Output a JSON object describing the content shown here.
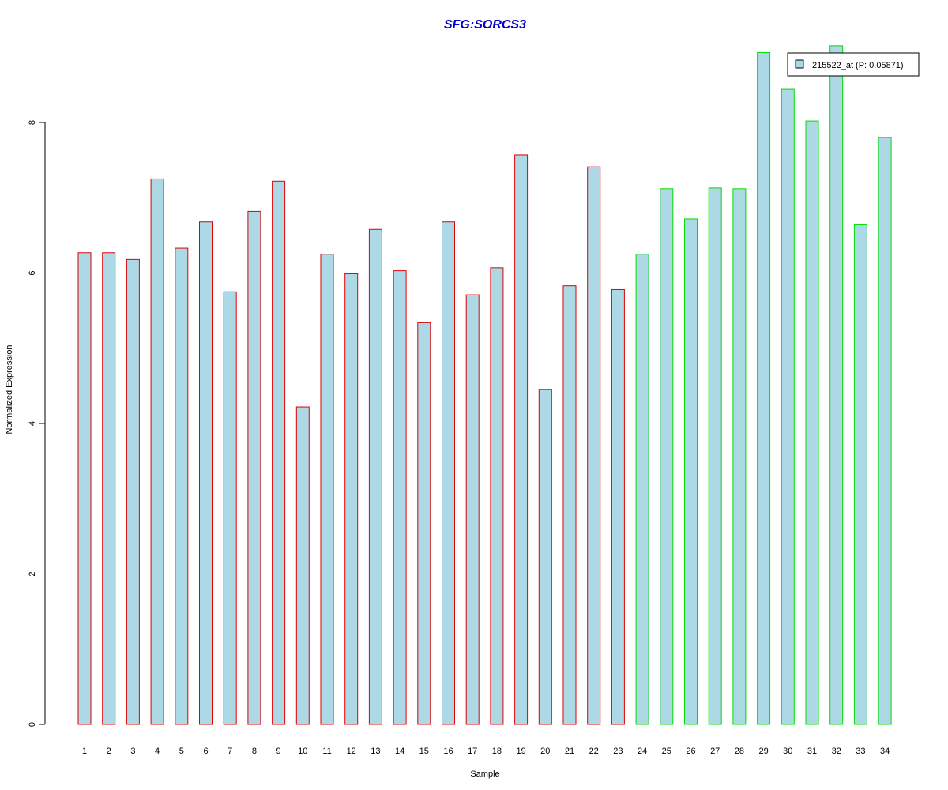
{
  "chart_data": {
    "type": "bar",
    "title": "SFG:SORCS3",
    "xlabel": "Sample",
    "ylabel": "Normalized Expression",
    "ylim": [
      0,
      9
    ],
    "yticks": [
      "0",
      "2",
      "4",
      "6",
      "8"
    ],
    "grid": false,
    "legend_position": "top-right",
    "legend": [
      "215522_at (P: 0.05871)"
    ],
    "categories": [
      "1",
      "2",
      "3",
      "4",
      "5",
      "6",
      "7",
      "8",
      "9",
      "10",
      "11",
      "12",
      "13",
      "14",
      "15",
      "16",
      "17",
      "18",
      "19",
      "20",
      "21",
      "22",
      "23",
      "24",
      "25",
      "26",
      "27",
      "28",
      "29",
      "30",
      "31",
      "32",
      "33",
      "34"
    ],
    "values": [
      6.27,
      6.27,
      6.18,
      7.25,
      6.33,
      6.68,
      5.75,
      6.82,
      7.22,
      4.22,
      6.25,
      5.99,
      6.58,
      6.03,
      5.34,
      6.68,
      5.71,
      6.07,
      7.57,
      4.45,
      5.83,
      7.41,
      5.78,
      6.25,
      7.12,
      6.72,
      7.13,
      7.12,
      8.93,
      8.44,
      8.02,
      9.02,
      6.64,
      7.8
    ],
    "series": [
      {
        "name": "215522_at (P: 0.05871)",
        "fill": "#add8e6"
      }
    ],
    "group_colors": [
      "#e00000",
      "#00dd00"
    ],
    "group_of_bar": [
      0,
      0,
      0,
      0,
      0,
      0,
      0,
      0,
      0,
      0,
      0,
      0,
      0,
      0,
      0,
      0,
      0,
      0,
      0,
      0,
      0,
      0,
      0,
      1,
      1,
      1,
      1,
      1,
      1,
      1,
      1,
      1,
      1,
      1
    ],
    "title_color": "#0000cc"
  }
}
